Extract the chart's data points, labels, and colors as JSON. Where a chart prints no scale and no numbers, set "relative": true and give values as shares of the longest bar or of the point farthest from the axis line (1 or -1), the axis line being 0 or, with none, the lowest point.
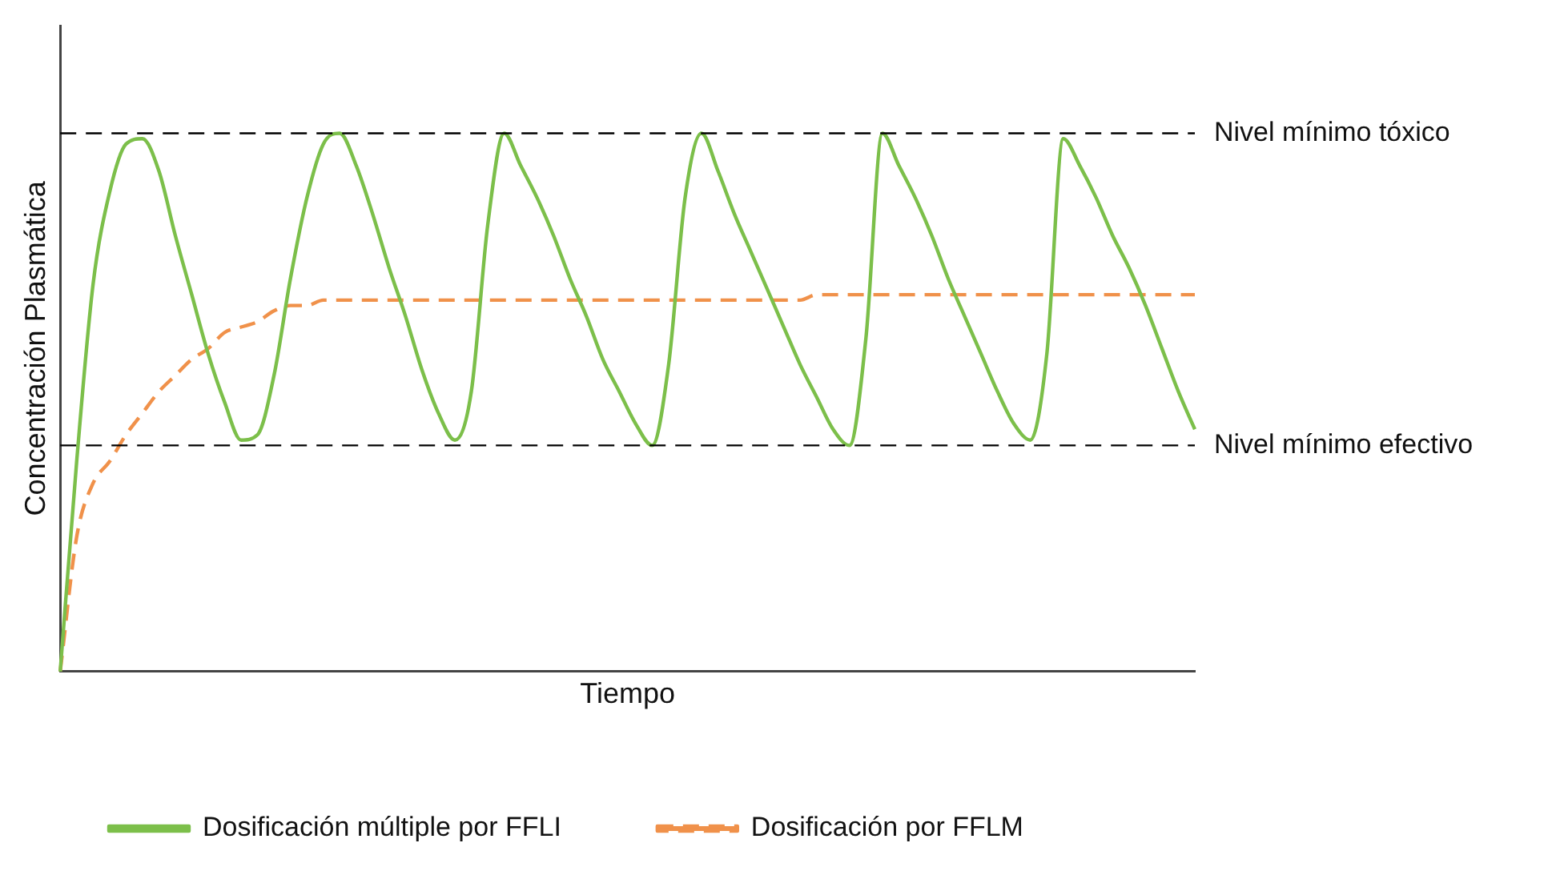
{
  "chart_data": {
    "type": "line",
    "relative": true,
    "xlabel": "Tiempo",
    "ylabel": "Concentración Plasmática",
    "categories": [
      null,
      null,
      null,
      null,
      null,
      null,
      null,
      null,
      null,
      null,
      null,
      null,
      null,
      null,
      null,
      null,
      null,
      null,
      null,
      null,
      null,
      null,
      null,
      null,
      null,
      null,
      null,
      null,
      null,
      null,
      null,
      null,
      null,
      null,
      null,
      null,
      null,
      null,
      null,
      null,
      null,
      null,
      null,
      null,
      null,
      null,
      null,
      null,
      null,
      null,
      null,
      null,
      null,
      null,
      null,
      null,
      null,
      null,
      null,
      null,
      null,
      null,
      null,
      null,
      null,
      null,
      null,
      null,
      null,
      null
    ],
    "series": [
      {
        "name": "Dosificación múltiple por FFLI",
        "color": "#7cbf4a",
        "line_style": "solid",
        "values": [
          0,
          0.39,
          0.72,
          0.89,
          0.98,
          0.99,
          0.93,
          0.81,
          0.7,
          0.59,
          0.5,
          0.43,
          0.44,
          0.55,
          0.73,
          0.88,
          0.98,
          1,
          0.94,
          0.85,
          0.75,
          0.66,
          0.56,
          0.48,
          0.43,
          0.52,
          0.83,
          1,
          0.94,
          0.88,
          0.81,
          0.73,
          0.66,
          0.58,
          0.52,
          0.46,
          0.42,
          0.57,
          0.88,
          1,
          0.93,
          0.85,
          0.78,
          0.71,
          0.64,
          0.57,
          0.51,
          0.45,
          0.42,
          0.62,
          1,
          0.94,
          0.88,
          0.81,
          0.73,
          0.66,
          0.59,
          0.52,
          0.46,
          0.43,
          0.59,
          0.99,
          0.94,
          0.88,
          0.81,
          0.75,
          0.68,
          0.6,
          0.52,
          0.45
        ]
      },
      {
        "name": "Dosificación por FFLM",
        "color": "#f0914a",
        "line_style": "dashed",
        "values": [
          0,
          0.25,
          0.35,
          0.39,
          0.44,
          0.48,
          0.52,
          0.55,
          0.58,
          0.6,
          0.63,
          0.64,
          0.65,
          0.67,
          0.68,
          0.68,
          0.69,
          0.69,
          0.69,
          0.69,
          0.69,
          0.69,
          0.69,
          0.69,
          0.69,
          0.69,
          0.69,
          0.69,
          0.69,
          0.69,
          0.69,
          0.69,
          0.69,
          0.69,
          0.69,
          0.69,
          0.69,
          0.69,
          0.69,
          0.69,
          0.69,
          0.69,
          0.69,
          0.69,
          0.69,
          0.69,
          0.7,
          0.7,
          0.7,
          0.7,
          0.7,
          0.7,
          0.7,
          0.7,
          0.7,
          0.7,
          0.7,
          0.7,
          0.7,
          0.7,
          0.7,
          0.7,
          0.7,
          0.7,
          0.7,
          0.7,
          0.7,
          0.7,
          0.7,
          0.7
        ]
      }
    ],
    "ref_lines": [
      {
        "axis": "y",
        "value": 1,
        "label": "Nivel mínimo tóxico",
        "color": "#000000",
        "line_style": "dashed"
      },
      {
        "axis": "y",
        "value": 0.42,
        "label": "Nivel mínimo efectivo",
        "color": "#000000",
        "line_style": "dashed"
      }
    ],
    "grid": false,
    "legend": "bottom",
    "marker": "none"
  }
}
